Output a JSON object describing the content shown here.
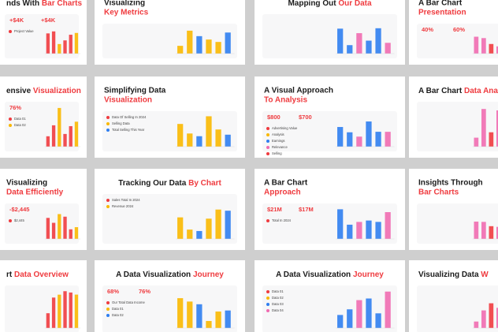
{
  "slides": [
    {
      "title": [
        "nds With ",
        "Bar Charts"
      ],
      "stats": [
        "+$4K",
        "+$4K"
      ],
      "labels": [
        "Project Value"
      ]
    },
    {
      "title": [
        "Visualizing",
        "Key Metrics"
      ],
      "stats": [],
      "labels": []
    },
    {
      "title": [
        "Mapping Out ",
        "Our Data"
      ],
      "stats": [],
      "labels": []
    },
    {
      "title": [
        "A Bar Chart",
        "Presentation"
      ],
      "stats": [
        "40%",
        "60%"
      ],
      "labels": []
    },
    {
      "title": [
        "ensive ",
        "Visualization"
      ],
      "stats": [
        "76%"
      ],
      "labels": [
        "Data 01",
        "Data 02"
      ]
    },
    {
      "title": [
        "Simplifying Data",
        "Visualization"
      ],
      "stats": [],
      "labels": [
        "Data Of Selling In 2024",
        "Selling Data",
        "Total Selling This Year"
      ]
    },
    {
      "title": [
        "A Visual Approach",
        "To Analysis"
      ],
      "stats": [
        "$800",
        "$700"
      ],
      "labels": [
        "Advertising Value",
        "Analysis",
        "Earnings",
        "Relevance",
        "Selling"
      ]
    },
    {
      "title": [
        "A Bar Chart ",
        "Data Analys"
      ],
      "stats": [],
      "labels": []
    },
    {
      "title": [
        "Visualizing",
        "Data Efficiently"
      ],
      "stats": [
        "-$2,445"
      ],
      "labels": [
        "$2,445"
      ]
    },
    {
      "title": [
        "Tracking Our Data ",
        "By Chart"
      ],
      "stats": [],
      "labels": [
        "Sales Total In 2024",
        "Revenue 2024"
      ]
    },
    {
      "title": [
        "A Bar Chart",
        "Approach"
      ],
      "stats": [
        "$21M",
        "$17M"
      ],
      "labels": [
        "Total In 2024"
      ]
    },
    {
      "title": [
        "Insights Through",
        "Bar Charts"
      ],
      "stats": [],
      "labels": []
    },
    {
      "title": [
        "rt ",
        "Data Overview"
      ],
      "stats": [],
      "labels": []
    },
    {
      "title": [
        "A Data Visualization ",
        "Journey"
      ],
      "stats": [
        "68%",
        "76%"
      ],
      "labels": [
        "Our Total Data Income",
        "Data 01",
        "Data 02"
      ]
    },
    {
      "title": [
        "A Data Visualization ",
        "Journey"
      ],
      "stats": [],
      "labels": [
        "Data 01",
        "Data 02",
        "Data 03",
        "Data 04"
      ]
    },
    {
      "title": [
        "Visualizing Data ",
        "W"
      ],
      "stats": [],
      "labels": []
    }
  ]
}
